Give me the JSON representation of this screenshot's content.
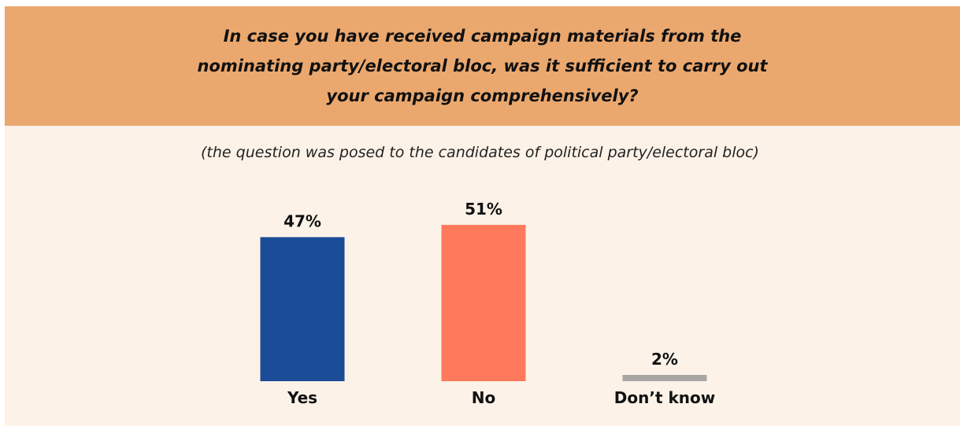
{
  "chart_data": {
    "type": "bar",
    "title": "In case you have received campaign materials from the nominating party/electoral bloc, was it sufficient to carry out your campaign comprehensively?",
    "subtitle": "(the question was posed to the candidates of political party/electoral bloc)",
    "categories": [
      "Yes",
      "No",
      "Don’t know"
    ],
    "values": [
      47,
      51,
      2
    ],
    "value_labels": [
      "47%",
      "51%",
      "2%"
    ],
    "colors": [
      "#1b4c98",
      "#ff7a5c",
      "#a9a7a6"
    ],
    "xlabel": "",
    "ylabel": "",
    "ylim": [
      0,
      100
    ],
    "grid": false,
    "legend": "none"
  }
}
